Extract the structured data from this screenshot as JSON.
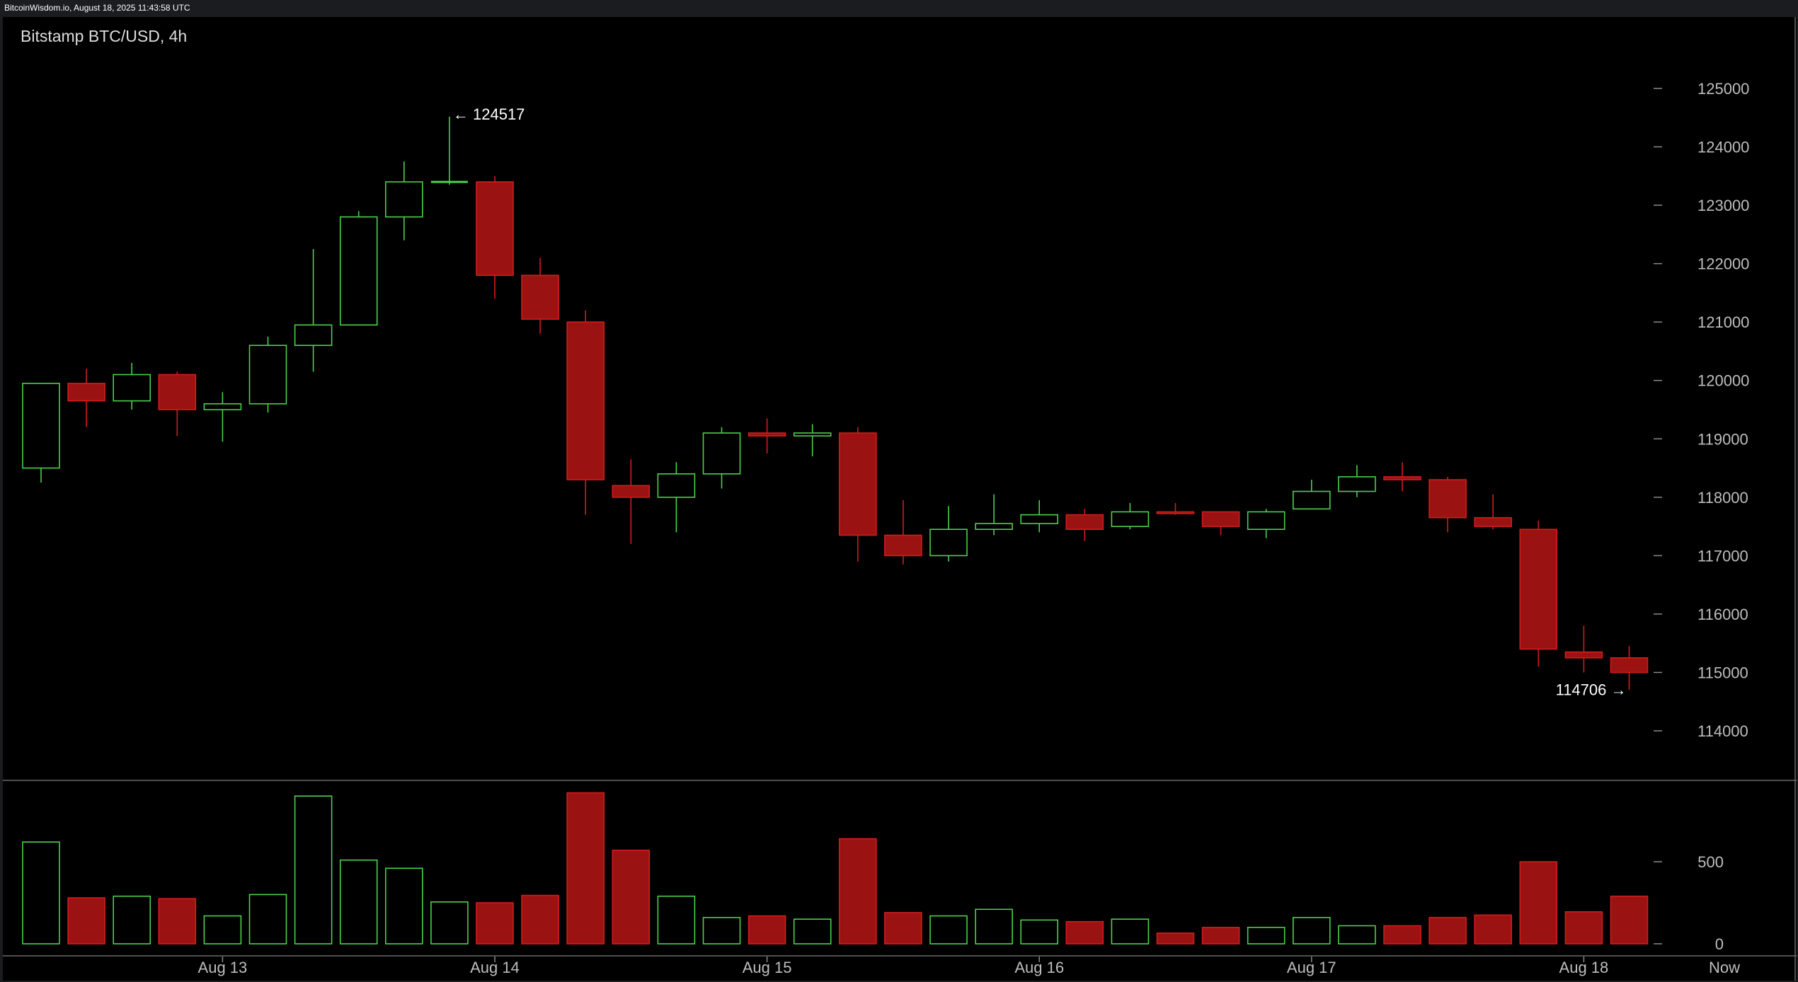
{
  "topbar": {
    "text": "BitcoinWisdom.io, August 18, 2025 11:43:58 UTC"
  },
  "colors": {
    "up": "#4ad14a",
    "down": "#9b1212",
    "down_edge": "#d01d1d",
    "background": "#000000",
    "frame": "#1b1c20",
    "axis_text": "#bdbdbd"
  },
  "chart_data": {
    "type": "candlestick",
    "title": "Bitstamp BTC/USD, 4h",
    "interval": "4h",
    "price_axis": {
      "ticks": [
        114000,
        115000,
        116000,
        117000,
        118000,
        119000,
        120000,
        121000,
        122000,
        123000,
        124000,
        125000
      ]
    },
    "volume_axis": {
      "ticks": [
        0,
        500
      ]
    },
    "x_labels": [
      "Aug 13",
      "Aug 14",
      "Aug 15",
      "Aug 16",
      "Aug 17",
      "Aug 18",
      "Now"
    ],
    "annotations": {
      "high": "← 124517",
      "low": "114706 →"
    },
    "candles": [
      {
        "o": 118500,
        "h": 119950,
        "l": 118250,
        "c": 119950,
        "v": 620
      },
      {
        "o": 119950,
        "h": 120200,
        "l": 119200,
        "c": 119650,
        "v": 280
      },
      {
        "o": 119650,
        "h": 120300,
        "l": 119500,
        "c": 120100,
        "v": 290
      },
      {
        "o": 120100,
        "h": 120150,
        "l": 119050,
        "c": 119500,
        "v": 275
      },
      {
        "o": 119500,
        "h": 119800,
        "l": 118950,
        "c": 119600,
        "v": 170
      },
      {
        "o": 119600,
        "h": 120750,
        "l": 119450,
        "c": 120600,
        "v": 300
      },
      {
        "o": 120600,
        "h": 122250,
        "l": 120150,
        "c": 120950,
        "v": 900
      },
      {
        "o": 120950,
        "h": 122900,
        "l": 120950,
        "c": 122800,
        "v": 510
      },
      {
        "o": 122800,
        "h": 123750,
        "l": 122400,
        "c": 123400,
        "v": 460
      },
      {
        "o": 123400,
        "h": 124517,
        "l": 123350,
        "c": 123400,
        "v": 255
      },
      {
        "o": 123400,
        "h": 123500,
        "l": 121400,
        "c": 121800,
        "v": 250
      },
      {
        "o": 121800,
        "h": 122100,
        "l": 120800,
        "c": 121050,
        "v": 295
      },
      {
        "o": 121000,
        "h": 121200,
        "l": 117700,
        "c": 118300,
        "v": 920
      },
      {
        "o": 118200,
        "h": 118650,
        "l": 117200,
        "c": 118000,
        "v": 570
      },
      {
        "o": 118000,
        "h": 118600,
        "l": 117400,
        "c": 118400,
        "v": 290
      },
      {
        "o": 118400,
        "h": 119200,
        "l": 118150,
        "c": 119100,
        "v": 160
      },
      {
        "o": 119100,
        "h": 119350,
        "l": 118750,
        "c": 119050,
        "v": 170
      },
      {
        "o": 119050,
        "h": 119250,
        "l": 118700,
        "c": 119100,
        "v": 150
      },
      {
        "o": 119100,
        "h": 119200,
        "l": 116900,
        "c": 117350,
        "v": 640
      },
      {
        "o": 117350,
        "h": 117950,
        "l": 116850,
        "c": 117000,
        "v": 190
      },
      {
        "o": 117000,
        "h": 117850,
        "l": 116900,
        "c": 117450,
        "v": 170
      },
      {
        "o": 117450,
        "h": 118050,
        "l": 117350,
        "c": 117550,
        "v": 210
      },
      {
        "o": 117550,
        "h": 117950,
        "l": 117400,
        "c": 117700,
        "v": 145
      },
      {
        "o": 117700,
        "h": 117800,
        "l": 117250,
        "c": 117450,
        "v": 135
      },
      {
        "o": 117500,
        "h": 117900,
        "l": 117450,
        "c": 117750,
        "v": 150
      },
      {
        "o": 117750,
        "h": 117900,
        "l": 117700,
        "c": 117720,
        "v": 65
      },
      {
        "o": 117750,
        "h": 117750,
        "l": 117350,
        "c": 117500,
        "v": 100
      },
      {
        "o": 117450,
        "h": 117800,
        "l": 117300,
        "c": 117750,
        "v": 100
      },
      {
        "o": 117800,
        "h": 118300,
        "l": 117800,
        "c": 118100,
        "v": 160
      },
      {
        "o": 118100,
        "h": 118550,
        "l": 118000,
        "c": 118350,
        "v": 110
      },
      {
        "o": 118350,
        "h": 118600,
        "l": 118100,
        "c": 118300,
        "v": 110
      },
      {
        "o": 118300,
        "h": 118350,
        "l": 117400,
        "c": 117650,
        "v": 160
      },
      {
        "o": 117650,
        "h": 118050,
        "l": 117450,
        "c": 117500,
        "v": 175
      },
      {
        "o": 117450,
        "h": 117600,
        "l": 115100,
        "c": 115400,
        "v": 500
      },
      {
        "o": 115350,
        "h": 115800,
        "l": 115000,
        "c": 115250,
        "v": 195
      },
      {
        "o": 115250,
        "h": 115450,
        "l": 114706,
        "c": 115000,
        "v": 290
      }
    ]
  }
}
